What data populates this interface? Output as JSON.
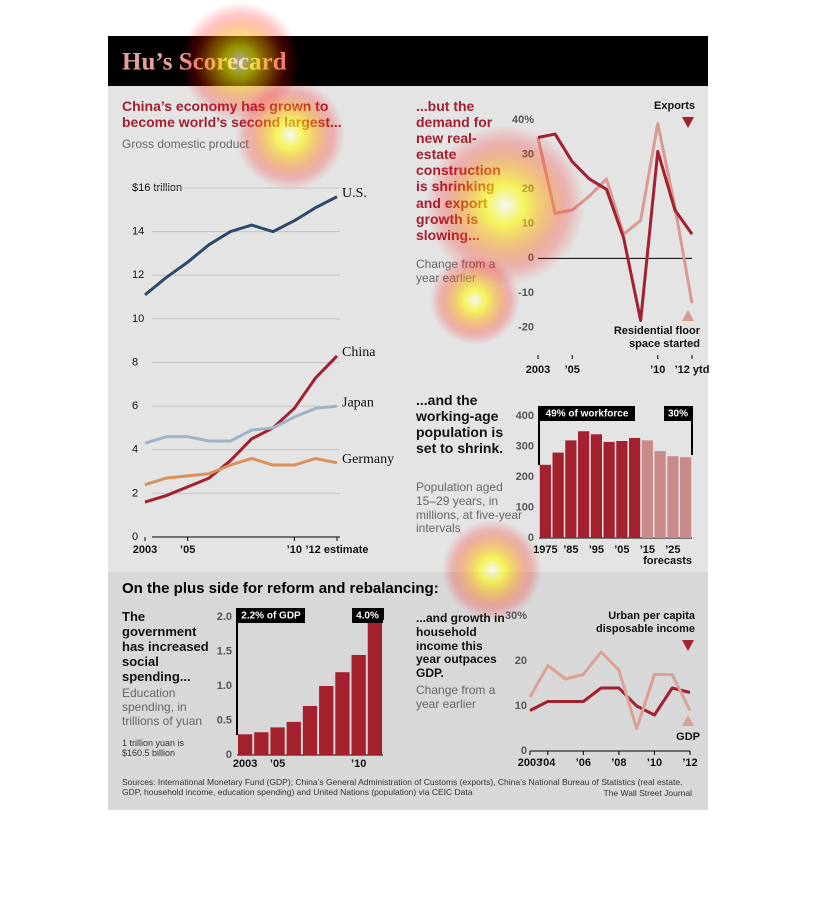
{
  "header": {
    "title": "Hu’s Scorecard"
  },
  "section_heading": "On the plus side for reform and rebalancing:",
  "footer": {
    "sources": "Sources: International Monetary Fund (GDP); China’s General Administration of Customs (exports), China’s National Bureau of Statistics (real estate, GDP, household income, education spending) and United Nations (population) via CEIC Data",
    "credit": "The Wall Street Journal"
  },
  "chart_data": [
    {
      "type": "line",
      "title": "China’s economy has grown to become world’s second largest...",
      "subtitle": "Gross domestic product",
      "x": [
        2003,
        2004,
        2005,
        2006,
        2007,
        2008,
        2009,
        2010,
        2011,
        2012
      ],
      "xlim": [
        2003,
        2012
      ],
      "xticks": [
        2003,
        {
          "value": 2005,
          "label": "’05"
        },
        {
          "value": 2010,
          "label": "’10"
        },
        {
          "value": 2012,
          "label": "’12 estimate"
        }
      ],
      "ylim": [
        0,
        16
      ],
      "yticks": [
        0,
        2,
        4,
        6,
        8,
        10,
        12,
        14,
        {
          "value": 16,
          "label": "$16 trillion"
        }
      ],
      "grid": true,
      "series": [
        {
          "name": "U.S.",
          "color": "#2b4a6b",
          "values": [
            11.1,
            11.9,
            12.6,
            13.4,
            14.0,
            14.3,
            14.0,
            14.5,
            15.1,
            15.6
          ]
        },
        {
          "name": "China",
          "color": "#a3202f",
          "values": [
            1.6,
            1.9,
            2.3,
            2.7,
            3.5,
            4.5,
            5.0,
            5.9,
            7.3,
            8.3
          ]
        },
        {
          "name": "Japan",
          "color": "#9fb3c8",
          "values": [
            4.3,
            4.6,
            4.6,
            4.4,
            4.4,
            4.9,
            5.0,
            5.5,
            5.9,
            6.0
          ]
        },
        {
          "name": "Germany",
          "color": "#d9925a",
          "values": [
            2.4,
            2.7,
            2.8,
            2.9,
            3.3,
            3.6,
            3.3,
            3.3,
            3.6,
            3.4
          ]
        }
      ]
    },
    {
      "type": "line",
      "title": "...but the demand for new real-estate construction is shrinking and export growth is slowing...",
      "subtitle": "Change from a year earlier",
      "x": [
        2003,
        2004,
        2005,
        2006,
        2007,
        2008,
        2009,
        2010,
        2011,
        2012
      ],
      "xlim": [
        2003,
        2012
      ],
      "xticks": [
        2003,
        {
          "value": 2005,
          "label": "’05"
        },
        {
          "value": 2010,
          "label": "’10"
        },
        {
          "value": 2012,
          "label": "’12 ytd"
        }
      ],
      "ylim": [
        -28,
        45
      ],
      "yticks": [
        -20,
        -10,
        0,
        10,
        20,
        30,
        {
          "value": 40,
          "label": "40%"
        }
      ],
      "grid": false,
      "series": [
        {
          "name": "Exports",
          "color": "#d99a8f",
          "values": [
            35,
            13,
            14,
            18,
            23,
            7,
            11,
            39,
            15,
            -13
          ]
        },
        {
          "name": "Residential floor space started",
          "color": "#a3202f",
          "values": [
            35,
            36,
            28,
            23,
            20,
            6,
            -18,
            31,
            14,
            7
          ]
        }
      ]
    },
    {
      "type": "bar",
      "title": "...and the working-age population is set to shrink.",
      "subtitle": "Population aged 15–29 years, in millions, at five-year intervals",
      "categories": [
        "1975",
        null,
        "’85",
        null,
        "’95",
        null,
        "’05",
        null,
        "’15",
        null,
        "’25",
        null
      ],
      "values": [
        240,
        280,
        320,
        350,
        340,
        315,
        318,
        328,
        320,
        285,
        268,
        265
      ],
      "colors": [
        "#a3202f",
        "#a3202f",
        "#a3202f",
        "#a3202f",
        "#a3202f",
        "#a3202f",
        "#a3202f",
        "#a3202f",
        "#c98a8a",
        "#c98a8a",
        "#c98a8a",
        "#c98a8a"
      ],
      "ylim": [
        0,
        400
      ],
      "yticks": [
        0,
        100,
        200,
        300,
        400
      ],
      "grid": false,
      "annotations": [
        "49% of workforce",
        "30%",
        "forecasts"
      ]
    },
    {
      "type": "bar",
      "title": "The government has increased social spending...",
      "subtitle": "Education spending, in trillions of yuan",
      "note": "1 trillion yuan is $160.5 billion",
      "categories": [
        "2003",
        null,
        "’05",
        null,
        null,
        null,
        null,
        "’10",
        null
      ],
      "values": [
        0.3,
        0.33,
        0.4,
        0.48,
        0.71,
        1.0,
        1.2,
        1.45,
        1.95
      ],
      "color": "#a3202f",
      "ylim": [
        0,
        2
      ],
      "yticks": [
        0,
        0.5,
        {
          "value": 1,
          "label": "1.0"
        },
        1.5,
        {
          "value": 2,
          "label": "2.0"
        }
      ],
      "grid": false,
      "annotations": [
        "2.2% of GDP",
        "4.0%"
      ]
    },
    {
      "type": "line",
      "title": "...and growth in household income this year outpaces GDP.",
      "subtitle": "Change from a year earlier",
      "x": [
        2003,
        2004,
        2005,
        2006,
        2007,
        2008,
        2009,
        2010,
        2011,
        2012
      ],
      "xlim": [
        2003,
        2012
      ],
      "xticks": [
        2003,
        {
          "value": 2004,
          "label": "’04"
        },
        {
          "value": 2006,
          "label": "’06"
        },
        {
          "value": 2008,
          "label": "’08"
        },
        {
          "value": 2010,
          "label": "’10"
        },
        {
          "value": 2012,
          "label": "’12"
        }
      ],
      "ylim": [
        0,
        30
      ],
      "yticks": [
        0,
        10,
        20,
        {
          "value": 30,
          "label": "30%"
        }
      ],
      "grid": false,
      "series": [
        {
          "name": "Urban per capita disposable income",
          "color": "#a3202f",
          "values": [
            9,
            11,
            11,
            11,
            14,
            14,
            10,
            8,
            14,
            13
          ]
        },
        {
          "name": "GDP",
          "color": "#d9a294",
          "values": [
            12,
            19,
            16,
            17,
            22,
            18,
            5,
            17,
            17,
            9
          ]
        }
      ]
    }
  ]
}
